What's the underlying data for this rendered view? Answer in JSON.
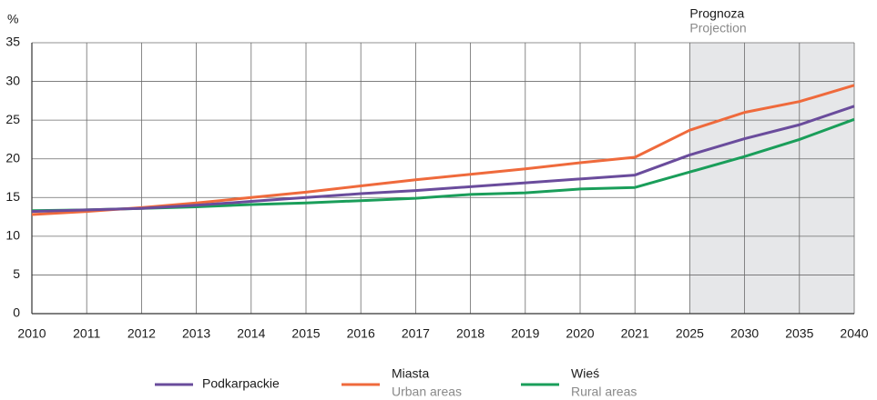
{
  "chart_data": {
    "type": "line",
    "y_label": "%",
    "categories": [
      "2010",
      "2011",
      "2012",
      "2013",
      "2014",
      "2015",
      "2016",
      "2017",
      "2018",
      "2019",
      "2020",
      "2021",
      "2025",
      "2030",
      "2035",
      "2040"
    ],
    "series": [
      {
        "name": "Podkarpackie",
        "color": "#6a4c9c",
        "values": [
          13.2,
          13.4,
          13.6,
          14.0,
          14.5,
          15.0,
          15.5,
          15.9,
          16.4,
          16.9,
          17.4,
          17.9,
          20.5,
          22.6,
          24.4,
          26.8
        ]
      },
      {
        "name": "Miasta",
        "subname": "Urban areas",
        "color": "#ef6a3c",
        "values": [
          12.8,
          13.2,
          13.7,
          14.3,
          15.0,
          15.7,
          16.5,
          17.3,
          18.0,
          18.7,
          19.5,
          20.2,
          23.7,
          26.0,
          27.4,
          29.5
        ]
      },
      {
        "name": "Wieś",
        "subname": "Rural areas",
        "color": "#1a9e5a",
        "values": [
          13.3,
          13.4,
          13.6,
          13.8,
          14.1,
          14.3,
          14.6,
          14.9,
          15.4,
          15.6,
          16.1,
          16.3,
          18.3,
          20.3,
          22.5,
          25.1
        ]
      }
    ],
    "ylim": [
      0,
      35
    ],
    "yticks": [
      0,
      5,
      10,
      15,
      20,
      25,
      30,
      35
    ],
    "grid": true,
    "projection": {
      "from": "2025",
      "to": "2040",
      "label": "Prognoza",
      "sublabel": "Projection",
      "color": "#e6e7e9"
    }
  }
}
